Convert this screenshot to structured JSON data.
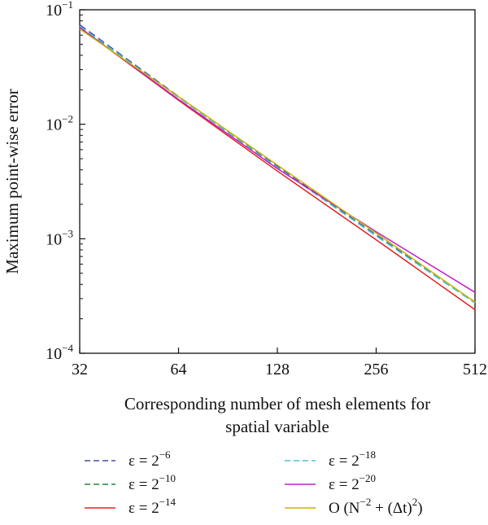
{
  "chart_data": {
    "type": "line",
    "xscale": "log2",
    "yscale": "log10",
    "x": [
      32,
      64,
      128,
      256,
      512
    ],
    "xlim": [
      32,
      512
    ],
    "ylim": [
      0.0001,
      0.1
    ],
    "x_ticks": [
      "32",
      "64",
      "128",
      "256",
      "512"
    ],
    "y_ticks": [
      {
        "base": "10",
        "exp": "−4"
      },
      {
        "base": "10",
        "exp": "−3"
      },
      {
        "base": "10",
        "exp": "−2"
      },
      {
        "base": "10",
        "exp": "−1"
      }
    ],
    "xlabel_lines": [
      "Corresponding number of mesh elements for",
      "spatial variable"
    ],
    "ylabel": "Maximum point-wise error",
    "legend_position": "bottom",
    "series": [
      {
        "label": "ε = 2",
        "sup": "−6",
        "color": "#4a4aa8",
        "dash": "9,5",
        "values": [
          0.074,
          0.0175,
          0.0043,
          0.00108,
          0.00028
        ]
      },
      {
        "label": "ε = 2",
        "sup": "−10",
        "color": "#1f8a2e",
        "dash": "9,5",
        "values": [
          0.072,
          0.0172,
          0.0042,
          0.00106,
          0.000275
        ]
      },
      {
        "label": "ε = 2",
        "sup": "−14",
        "color": "#e02020",
        "dash": "",
        "values": [
          0.07,
          0.0162,
          0.0039,
          0.00098,
          0.00024
        ]
      },
      {
        "label": "ε = 2",
        "sup": "−18",
        "color": "#3fc8d8",
        "dash": "9,5",
        "values": [
          0.072,
          0.0172,
          0.0042,
          0.00106,
          0.000275
        ]
      },
      {
        "label": "ε = 2",
        "sup": "−20",
        "color": "#c020c8",
        "dash": "",
        "values": [
          0.07,
          0.0165,
          0.0041,
          0.00115,
          0.00034
        ]
      },
      {
        "label": "O (N",
        "sup": "−2",
        "label2": " + (Δt)",
        "sup2": "2",
        "label3": ")",
        "color": "#c8b400",
        "dash": "",
        "values": [
          0.068,
          0.0174,
          0.0044,
          0.00112,
          0.00028
        ]
      }
    ]
  }
}
